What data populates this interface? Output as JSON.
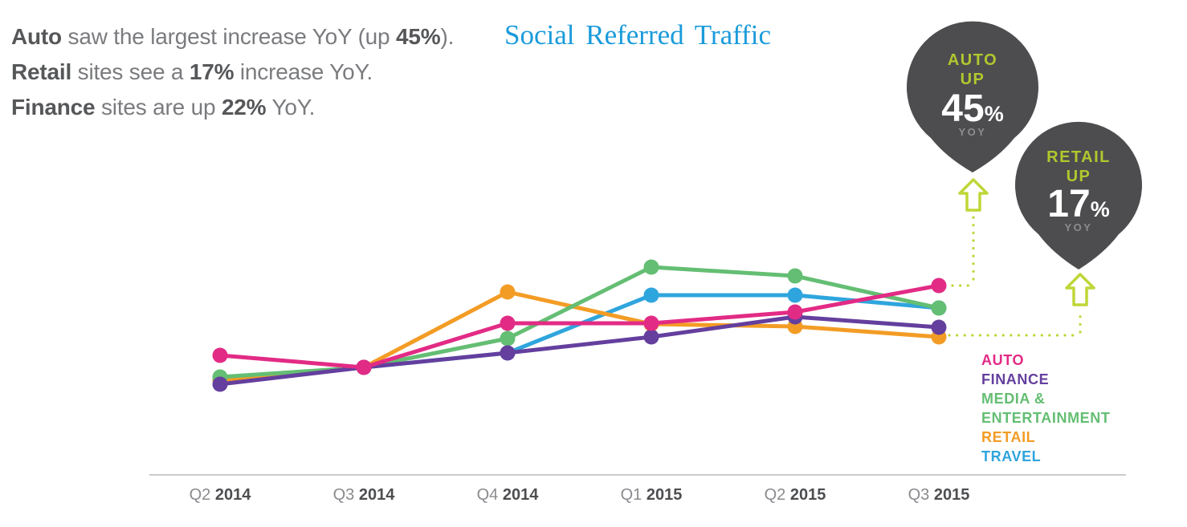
{
  "title": "Social Referred Traffic",
  "intro": {
    "lines": [
      {
        "segments": [
          {
            "text": "Auto",
            "bold": true
          },
          {
            "text": " saw the largest increase YoY (up ",
            "bold": false
          },
          {
            "text": "45%",
            "bold": true
          },
          {
            "text": ").",
            "bold": false
          }
        ]
      },
      {
        "segments": [
          {
            "text": "Retail",
            "bold": true
          },
          {
            "text": " sites see a ",
            "bold": false
          },
          {
            "text": "17%",
            "bold": true
          },
          {
            "text": " increase YoY.",
            "bold": false
          }
        ]
      },
      {
        "segments": [
          {
            "text": "Finance",
            "bold": true
          },
          {
            "text": " sites are up ",
            "bold": false
          },
          {
            "text": "22%",
            "bold": true
          },
          {
            "text": " YoY.",
            "bold": false
          }
        ]
      }
    ]
  },
  "annotations": [
    {
      "category": "AUTO",
      "direction": "UP",
      "value": "45",
      "unit": "%",
      "period": "YOY"
    },
    {
      "category": "RETAIL",
      "direction": "UP",
      "value": "17",
      "unit": "%",
      "period": "YOY"
    }
  ],
  "legend": {
    "items": [
      {
        "label": "AUTO"
      },
      {
        "label": "FINANCE"
      },
      {
        "label": "MEDIA & ENTERTAINMENT"
      },
      {
        "label": "RETAIL"
      },
      {
        "label": "TRAVEL"
      }
    ]
  },
  "chart_data": {
    "type": "line",
    "title": "Social Referred Traffic",
    "categories": [
      "Q2 2014",
      "Q3 2014",
      "Q4 2014",
      "Q1 2015",
      "Q2 2015",
      "Q3 2015"
    ],
    "xlabel": "",
    "ylabel": "",
    "y_axis_shown": false,
    "y_unit": "relative social-referred-traffic index (no axis labels shown; values estimated from pixel positions, all series converge at Q3 2014)",
    "grid": false,
    "legend_position": "right",
    "series": [
      {
        "name": "AUTO",
        "color": "#E22B85",
        "values": [
          149,
          134,
          189,
          189,
          203,
          236
        ]
      },
      {
        "name": "FINANCE",
        "color": "#643F9E",
        "values": [
          113,
          134,
          152,
          172,
          197,
          184
        ]
      },
      {
        "name": "MEDIA & ENTERTAINMENT",
        "color": "#64BE73",
        "values": [
          122,
          134,
          170,
          259,
          248,
          208
        ]
      },
      {
        "name": "RETAIL",
        "color": "#F39C25",
        "values": [
          118,
          134,
          228,
          188,
          185,
          172
        ]
      },
      {
        "name": "TRAVEL",
        "color": "#2FA5DD",
        "values": [
          120,
          134,
          152,
          224,
          224,
          208
        ]
      }
    ],
    "draw_order": [
      4,
      3,
      2,
      1,
      0
    ],
    "annotations": [
      {
        "text": "AUTO UP 45% YOY",
        "anchor_series": "AUTO",
        "anchor_category": "Q3 2015"
      },
      {
        "text": "RETAIL UP 17% YOY",
        "anchor_series": "RETAIL",
        "anchor_category": "Q3 2015"
      }
    ]
  },
  "colors": {
    "title_blue": "#1A9BDB",
    "balloon_bg": "#4D4D4F",
    "balloon_label_lime": "#B2C72E",
    "balloon_value_white": "#FFFFFF",
    "balloon_period_gray": "#8D8D8F",
    "arrow_lime": "#BFD637",
    "axis_line_gray": "#CBCBCB",
    "text_gray": "#7A7B7E",
    "text_dark": "#565759"
  }
}
